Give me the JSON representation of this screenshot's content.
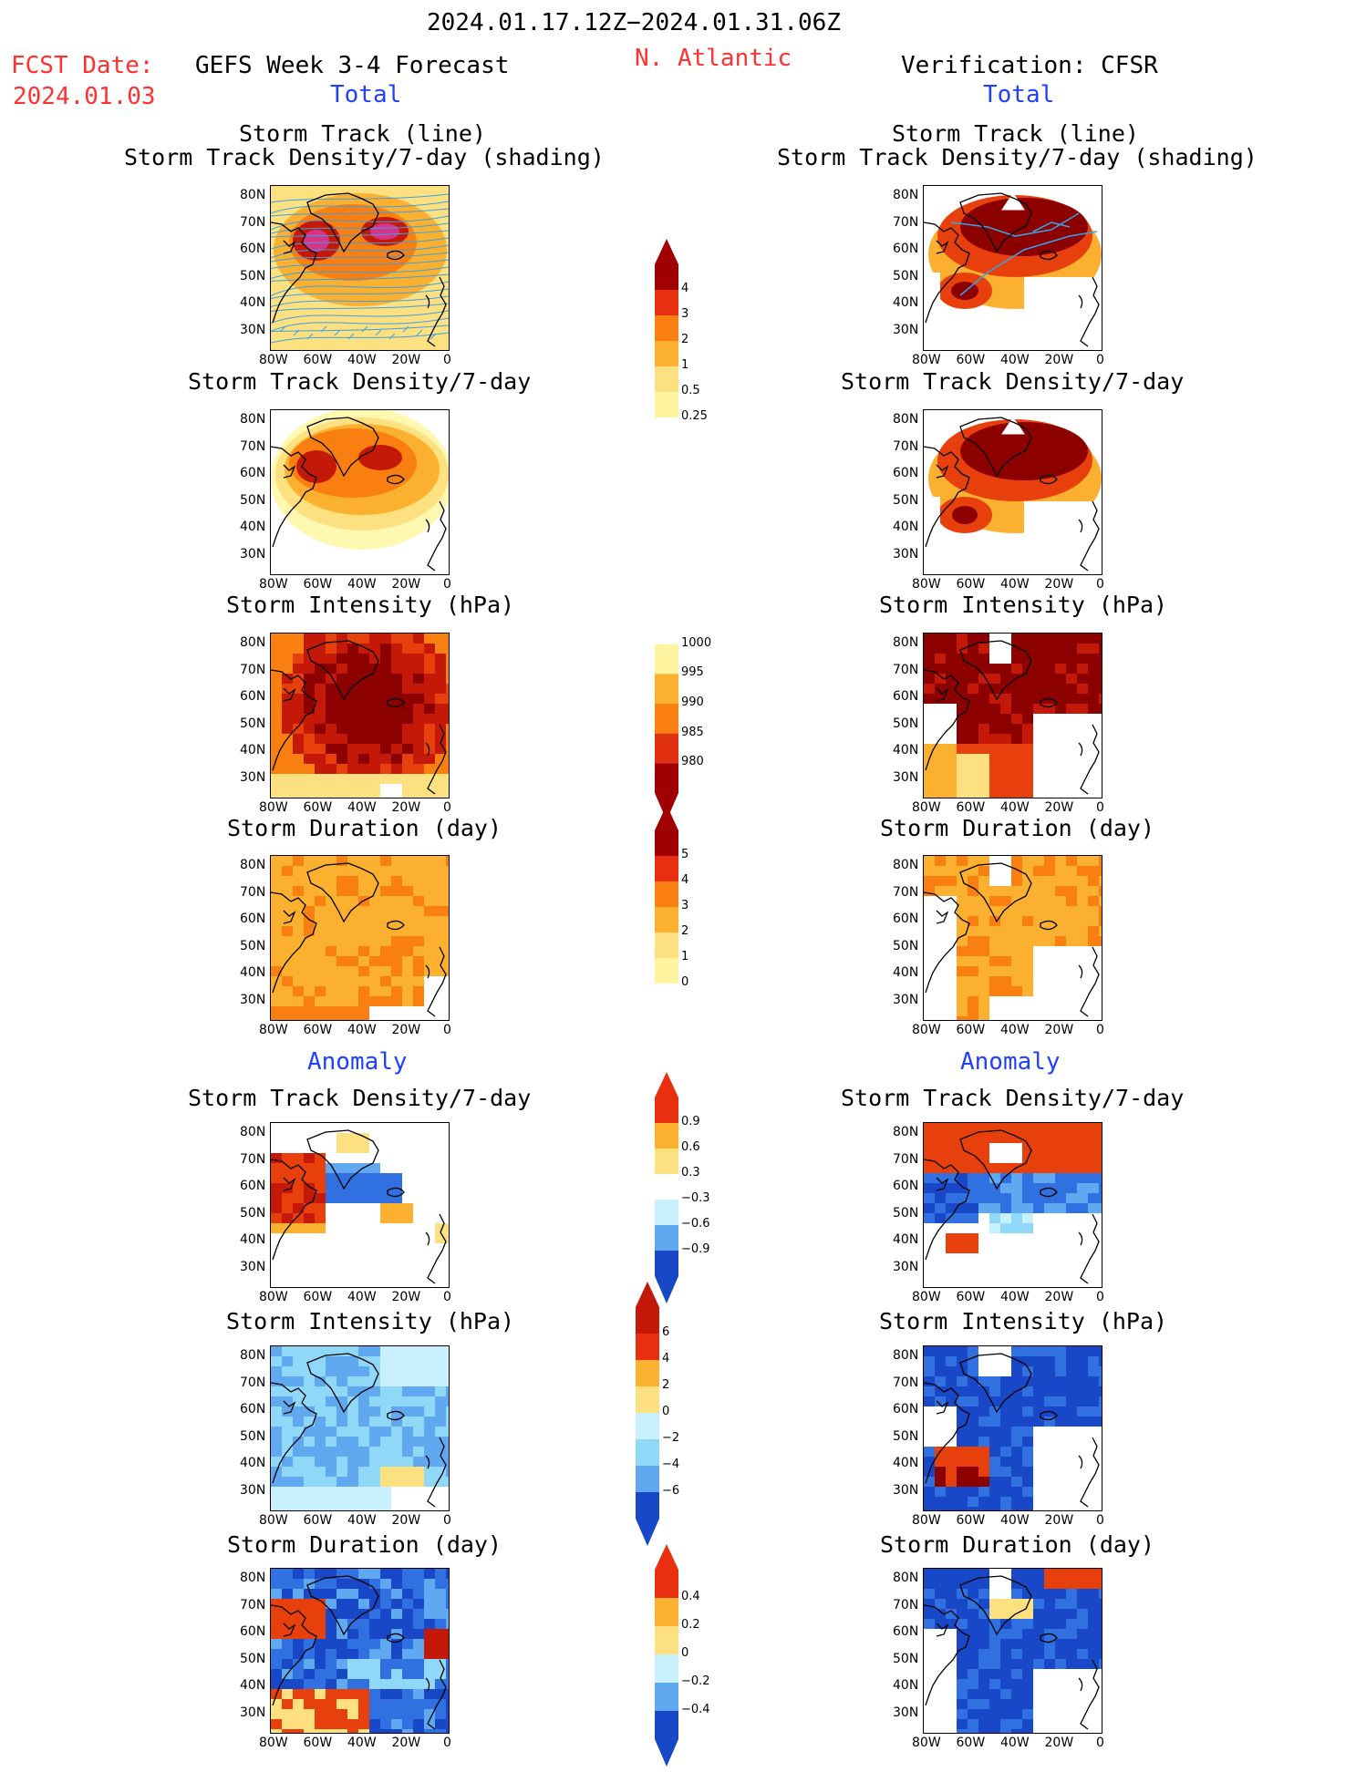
{
  "header": {
    "date_range": "2024.01.17.12Z−2024.01.31.06Z",
    "fcst_label": "FCST Date:",
    "fcst_date": "2024.01.03",
    "forecast_title": "GEFS Week 3-4 Forecast",
    "region": "N. Atlantic",
    "verification_title": "Verification: CFSR",
    "total_label": "Total",
    "anomaly_label": "Anomaly"
  },
  "axes": {
    "lat_ticks": [
      "80N",
      "70N",
      "60N",
      "50N",
      "40N",
      "30N"
    ],
    "lon_ticks": [
      "80W",
      "60W",
      "40W",
      "20W",
      "0"
    ]
  },
  "panels": {
    "track_line_title_1": "Storm Track (line)",
    "track_line_title_2": "Storm Track Density/7-day (shading)",
    "density_title": "Storm Track Density/7-day",
    "intensity_title": "Storm Intensity (hPa)",
    "duration_title": "Storm Duration (day)"
  },
  "colorbars": {
    "density_total": [
      "4",
      "3",
      "2",
      "1",
      "0.5",
      "0.25"
    ],
    "intensity_total": [
      "1000",
      "995",
      "990",
      "985",
      "980"
    ],
    "duration_total": [
      "5",
      "4",
      "3",
      "2",
      "1",
      "0"
    ],
    "density_anom": [
      "0.9",
      "0.6",
      "0.3",
      "−0.3",
      "−0.6",
      "−0.9"
    ],
    "intensity_anom": [
      "6",
      "4",
      "2",
      "0",
      "−2",
      "−4",
      "−6"
    ],
    "duration_anom": [
      "0.4",
      "0.2",
      "0",
      "−0.2",
      "−0.4"
    ]
  },
  "colors": {
    "warm": [
      "#fff8b0",
      "#fde080",
      "#fbb030",
      "#f98010",
      "#e8400c",
      "#c41808",
      "#8c0000"
    ],
    "cool": [
      "#ffffff",
      "#c8f0ff",
      "#90d8f8",
      "#60a8f0",
      "#3070e0",
      "#1848c8"
    ],
    "accent_red": "#ff3030",
    "accent_blue": "#2040ff"
  }
}
